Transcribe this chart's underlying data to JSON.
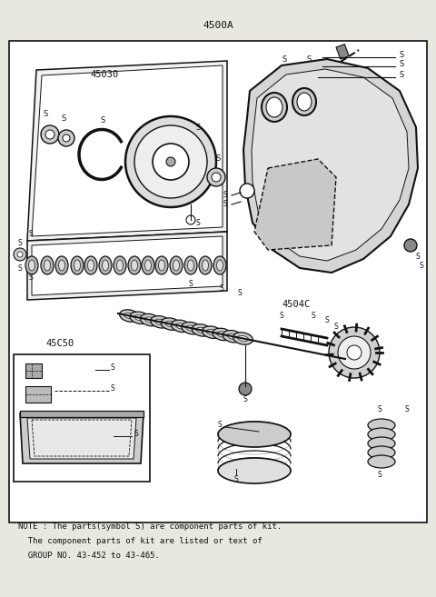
{
  "title": "4500A",
  "bg_color": "#e8e8e0",
  "page_color": "#ffffff",
  "line_color": "#111111",
  "note_line1": "NOTE : The parts(symbol S) are component parts of kit.",
  "note_line2": "  The component parts of kit are listed or text of",
  "note_line3": "  GROUP NO. 43-452 to 43-465.",
  "label_45030": "45030",
  "label_45040": "4504C",
  "label_45050": "45C50",
  "fig_width": 4.8,
  "fig_height": 6.57,
  "dpi": 100
}
